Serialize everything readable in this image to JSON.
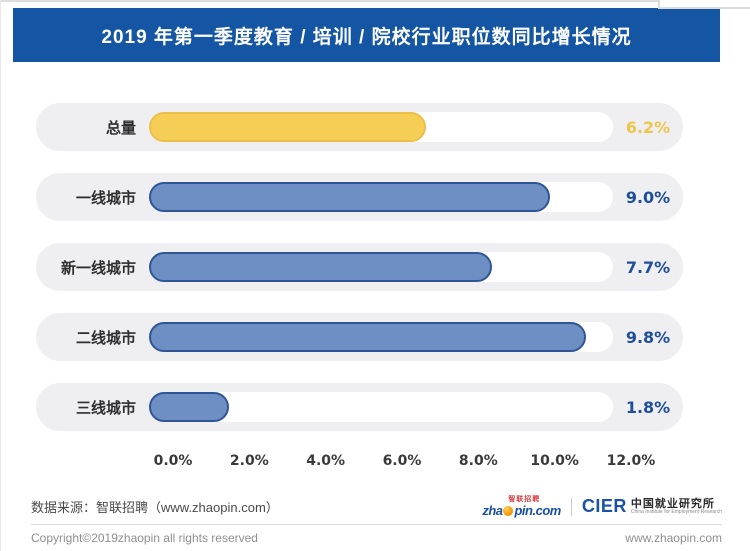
{
  "chart_data": {
    "type": "bar",
    "orientation": "horizontal",
    "title": "2019 年第一季度教育 / 培训 / 院校行业职位数同比增长情况",
    "categories": [
      "总量",
      "一线城市",
      "新一线城市",
      "二线城市",
      "三线城市"
    ],
    "values": [
      6.2,
      9.0,
      7.7,
      9.8,
      1.8
    ],
    "value_labels": [
      "6.2%",
      "9.0%",
      "7.7%",
      "9.8%",
      "1.8%"
    ],
    "x_tick_labels": [
      "0.0%",
      "2.0%",
      "4.0%",
      "6.0%",
      "8.0%",
      "10.0%",
      "12.0%"
    ],
    "xlim": [
      0,
      12
    ],
    "grid": false,
    "legend": "none",
    "bar_styles": [
      {
        "fill": "#F6CE55",
        "border": "#EBBF48",
        "value_color": "#EFC54B"
      },
      {
        "fill": "#6D8FC3",
        "border": "#2F5597",
        "value_color": "#1F4E9B"
      },
      {
        "fill": "#6D8FC3",
        "border": "#2F5597",
        "value_color": "#1F4E9B"
      },
      {
        "fill": "#6D8FC3",
        "border": "#2F5597",
        "value_color": "#1F4E9B"
      },
      {
        "fill": "#6D8FC3",
        "border": "#2F5597",
        "value_color": "#1F4E9B"
      }
    ]
  },
  "colors": {
    "banner_bg": "#1455A4",
    "row_bg": "#EFEFF1",
    "track_bg": "#FFFFFF"
  },
  "footer": {
    "source": "数据来源：智联招聘（www.zhaopin.com）",
    "zhaopin_logo": {
      "badge": "智联招聘",
      "pre": "zha",
      "post": "pin.com"
    },
    "cier_logo": {
      "abbr": "CIER",
      "name_cn": "中国就业研究所",
      "name_en": "China Institute for Employment Research"
    },
    "copyright": "Copyright©2019zhaopin all rights reserved",
    "website": "www.zhaopin.com"
  }
}
